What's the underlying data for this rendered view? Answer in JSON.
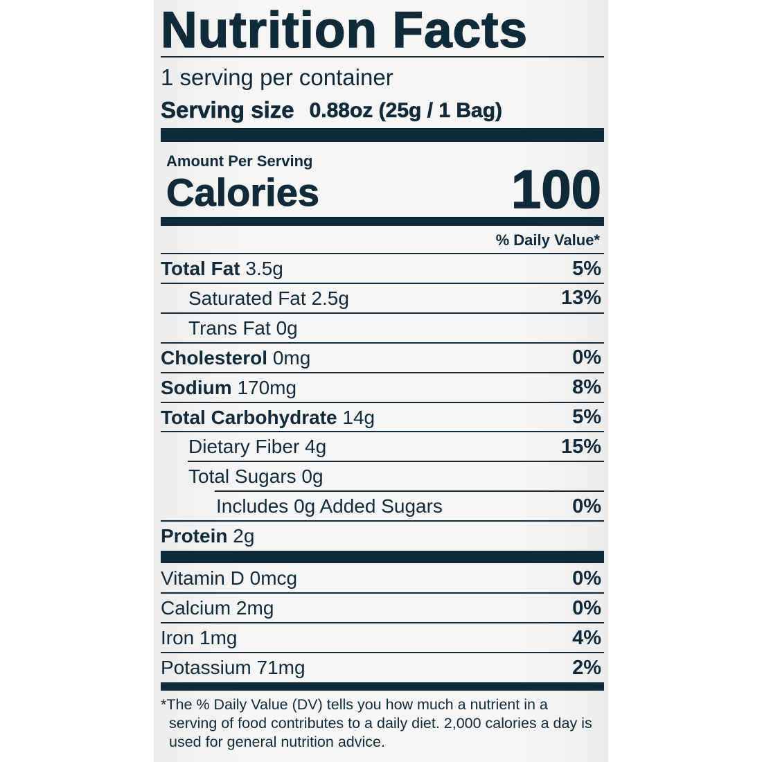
{
  "title": "Nutrition Facts",
  "servings_per_container": "1 serving per container",
  "serving_size": {
    "label": "Serving size",
    "value": "0.88oz (25g / 1 Bag)"
  },
  "amount_per_serving": "Amount Per Serving",
  "calories": {
    "label": "Calories",
    "value": "100"
  },
  "daily_value_header": "% Daily Value*",
  "nutrients": [
    {
      "name": "Total Fat",
      "amount": "3.5g",
      "dv": "5%"
    },
    {
      "name": "Saturated Fat",
      "amount": "2.5g",
      "dv": "13%"
    },
    {
      "name": "Trans Fat",
      "amount": "0g"
    },
    {
      "name": "Cholesterol",
      "amount": "0mg",
      "dv": "0%"
    },
    {
      "name": "Sodium",
      "amount": "170mg",
      "dv": "8%"
    },
    {
      "name": "Total Carbohydrate",
      "amount": "14g",
      "dv": "5%"
    },
    {
      "name": "Dietary Fiber",
      "amount": "4g",
      "dv": "15%"
    },
    {
      "name": "Total Sugars",
      "amount": "0g"
    },
    {
      "name": "Includes 0g Added Sugars",
      "dv": "0%"
    },
    {
      "name": "Protein",
      "amount": "2g"
    }
  ],
  "vitamins": [
    {
      "name": "Vitamin D",
      "amount": "0mcg",
      "dv": "0%"
    },
    {
      "name": "Calcium",
      "amount": "2mg",
      "dv": "0%"
    },
    {
      "name": "Iron",
      "amount": "1mg",
      "dv": "4%"
    },
    {
      "name": "Potassium",
      "amount": "71mg",
      "dv": "2%"
    }
  ],
  "footnote": "*The % Daily Value (DV) tells you how much a nutrient in a serving of food contributes to a daily diet. 2,000 calories a day is used for general nutrition advice."
}
